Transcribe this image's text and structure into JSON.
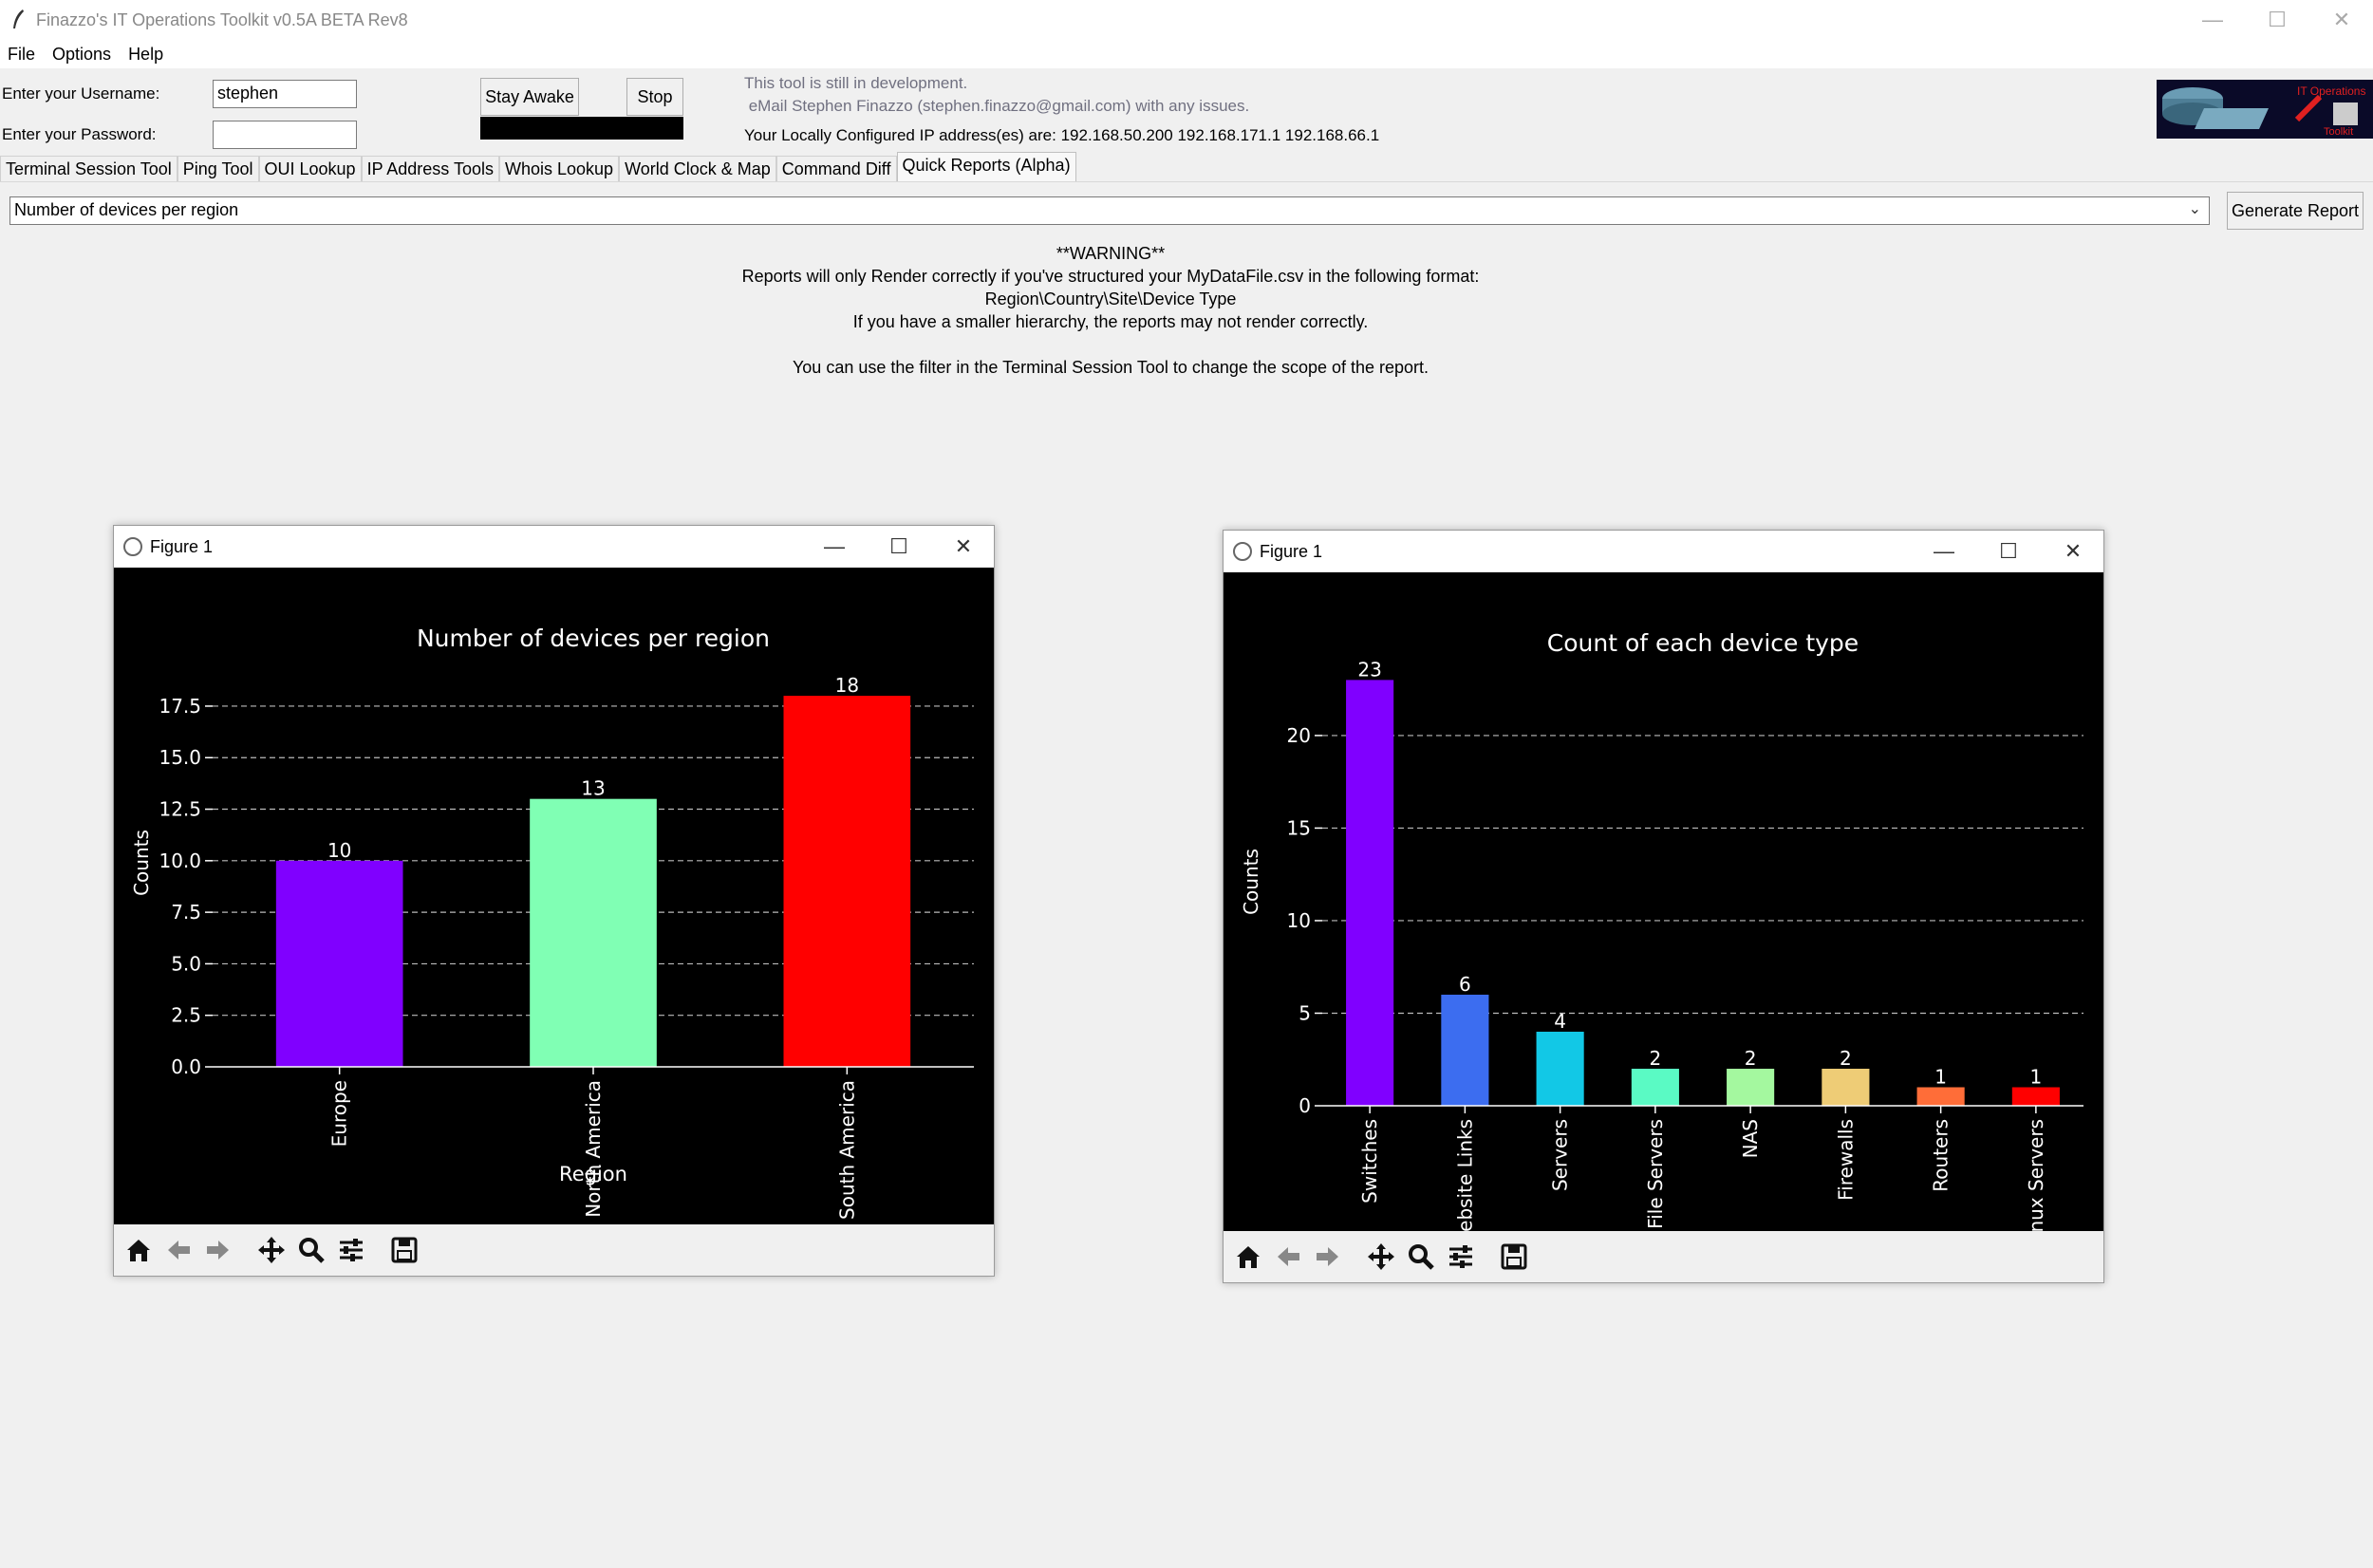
{
  "window": {
    "title": "Finazzo's IT Operations Toolkit v0.5A BETA Rev8",
    "minimize": "—",
    "maximize": "☐",
    "close": "✕"
  },
  "menu": [
    "File",
    "Options",
    "Help"
  ],
  "login": {
    "username_label": "Enter your Username:",
    "username_value": "stephen",
    "password_label": "Enter your Password:",
    "password_value": ""
  },
  "buttons": {
    "stay_awake": "Stay Awake",
    "stop": "Stop",
    "generate_report": "Generate Report"
  },
  "info": {
    "dev_line1": "This tool is still in development.",
    "dev_line2": " eMail Stephen Finazzo (stephen.finazzo@gmail.com) with any issues.",
    "ip_line": "Your Locally Configured IP address(es) are: 192.168.50.200 192.168.171.1 192.168.66.1"
  },
  "logo": {
    "line1": "IT Operations",
    "line2": "Toolkit"
  },
  "tabs": [
    "Terminal Session Tool",
    "Ping Tool",
    "OUI Lookup",
    "IP Address Tools",
    "Whois Lookup",
    "World Clock & Map",
    "Command Diff",
    "Quick Reports (Alpha)"
  ],
  "report_select": {
    "selected": "Number of devices per region",
    "chevron": "⌄"
  },
  "warning": {
    "line1": "**WARNING**",
    "line2": "Reports will only Render correctly if you've structured your MyDataFile.csv in the following format:",
    "line3": "Region\\Country\\Site\\Device Type",
    "line4": "If you have a smaller hierarchy, the reports may not render correctly.",
    "line5": "You can use the filter in the Terminal Session Tool to change the scope of the report."
  },
  "figures": [
    {
      "window_title": "Figure 1"
    },
    {
      "window_title": "Figure 1"
    }
  ],
  "chart_data": [
    {
      "type": "bar",
      "title": "Number of devices per region",
      "xlabel": "Region",
      "ylabel": "Counts",
      "categories": [
        "Europe",
        "North America",
        "South America"
      ],
      "values": [
        10,
        13,
        18
      ],
      "colors": [
        "#8000ff",
        "#80ffb4",
        "#ff0000"
      ],
      "ylim": [
        0,
        19.8
      ],
      "yticks": [
        "0.0",
        "2.5",
        "5.0",
        "7.5",
        "10.0",
        "12.5",
        "15.0",
        "17.5"
      ],
      "ytick_values": [
        0,
        2.5,
        5,
        7.5,
        10,
        12.5,
        15,
        17.5
      ],
      "grid": true,
      "background": "#000000"
    },
    {
      "type": "bar",
      "title": "Count of each device type",
      "xlabel": "",
      "ylabel": "Counts",
      "categories": [
        "Switches",
        "Website Links",
        "Servers",
        "File Servers",
        "NAS",
        "Firewalls",
        "Routers",
        "Linux Servers"
      ],
      "values": [
        23,
        6,
        4,
        2,
        2,
        2,
        1,
        1
      ],
      "colors": [
        "#8000ff",
        "#3c6df0",
        "#12c8e6",
        "#5afac4",
        "#a4f89f",
        "#eecc76",
        "#ff6d38",
        "#ff0000"
      ],
      "ylim": [
        0,
        24.2
      ],
      "yticks": [
        "0",
        "5",
        "10",
        "15",
        "20"
      ],
      "ytick_values": [
        0,
        5,
        10,
        15,
        20
      ],
      "grid": true,
      "background": "#000000"
    }
  ]
}
